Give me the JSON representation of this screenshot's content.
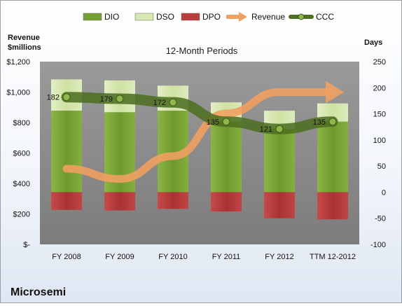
{
  "chart_data": {
    "type": "bar",
    "title": "12-Month Periods",
    "company": "Microsemi",
    "left_axis_label": [
      "Revenue",
      "$millions"
    ],
    "right_axis_label": "Days",
    "categories": [
      "FY 2008",
      "FY 2009",
      "FY 2010",
      "FY 2011",
      "FY 2012",
      "TTM 12-2012"
    ],
    "left_axis": {
      "min": 0,
      "max": 1200,
      "step": 200,
      "tick_labels": [
        "$-",
        "$200",
        "$400",
        "$600",
        "$800",
        "$1,000",
        "$1,200"
      ]
    },
    "right_axis": {
      "min": -100,
      "max": 250,
      "step": 50,
      "tick_labels": [
        "-100",
        "-50",
        "0",
        "50",
        "100",
        "150",
        "200",
        "250"
      ]
    },
    "legend": {
      "placement": "top",
      "items": [
        {
          "label": "DIO",
          "kind": "bar",
          "color": "#77a034"
        },
        {
          "label": "DSO",
          "kind": "bar",
          "color": "#d7e8b2"
        },
        {
          "label": "DPO",
          "kind": "bar",
          "color": "#b73c3e"
        },
        {
          "label": "Revenue",
          "kind": "arrow",
          "color": "#f0a060"
        },
        {
          "label": "CCC",
          "kind": "line",
          "color": "#4e6e22"
        }
      ]
    },
    "series": [
      {
        "name": "DIO",
        "axis": "right",
        "values": [
          156,
          153,
          156,
          135,
          121,
          135
        ]
      },
      {
        "name": "DSO",
        "axis": "right",
        "values": [
          60,
          61,
          48,
          37,
          35,
          35
        ]
      },
      {
        "name": "DPO",
        "axis": "right",
        "values": [
          -34,
          -35,
          -32,
          -37,
          -50,
          -52
        ]
      },
      {
        "name": "Revenue",
        "axis": "left",
        "values": [
          497,
          430,
          580,
          860,
          1000,
          1000
        ]
      },
      {
        "name": "CCC",
        "axis": "right",
        "values": [
          182,
          179,
          172,
          135,
          121,
          135
        ]
      }
    ],
    "ccc_labels": [
      "182",
      "179",
      "172",
      "135",
      "121",
      "135"
    ],
    "colors": {
      "dio": "#77a034",
      "dso": "#d7e8b2",
      "dpo": "#b73c3e",
      "revenue": "#f0a060",
      "ccc": "#4e6e22",
      "plot_background": "#8c8c8c"
    },
    "grid": false
  }
}
